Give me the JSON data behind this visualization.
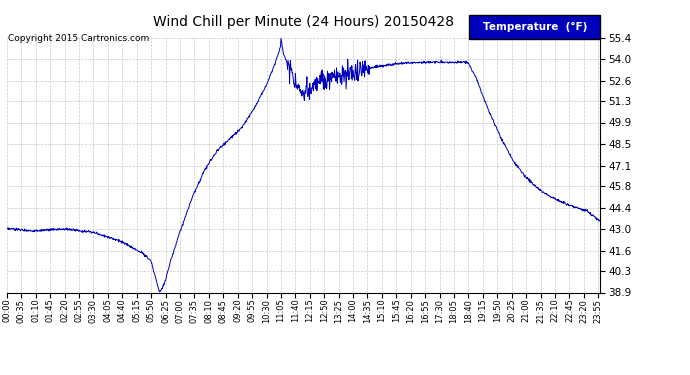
{
  "title": "Wind Chill per Minute (24 Hours) 20150428",
  "copyright": "Copyright 2015 Cartronics.com",
  "legend_label": "Temperature  (°F)",
  "line_color": "#0000bb",
  "background_color": "#ffffff",
  "grid_color": "#bbbbbb",
  "ylim": [
    38.9,
    55.4
  ],
  "yticks": [
    38.9,
    40.3,
    41.6,
    43.0,
    44.4,
    45.8,
    47.1,
    48.5,
    49.9,
    51.3,
    52.6,
    54.0,
    55.4
  ],
  "xtick_labels": [
    "00:00",
    "00:35",
    "01:10",
    "01:45",
    "02:20",
    "02:55",
    "03:30",
    "04:05",
    "04:40",
    "05:15",
    "05:50",
    "06:25",
    "07:00",
    "07:35",
    "08:10",
    "08:45",
    "09:20",
    "09:55",
    "10:30",
    "11:05",
    "11:40",
    "12:15",
    "12:50",
    "13:25",
    "14:00",
    "14:35",
    "15:10",
    "15:45",
    "16:20",
    "16:55",
    "17:30",
    "18:05",
    "18:40",
    "19:15",
    "19:50",
    "20:25",
    "21:00",
    "21:35",
    "22:10",
    "22:45",
    "23:20",
    "23:55"
  ]
}
